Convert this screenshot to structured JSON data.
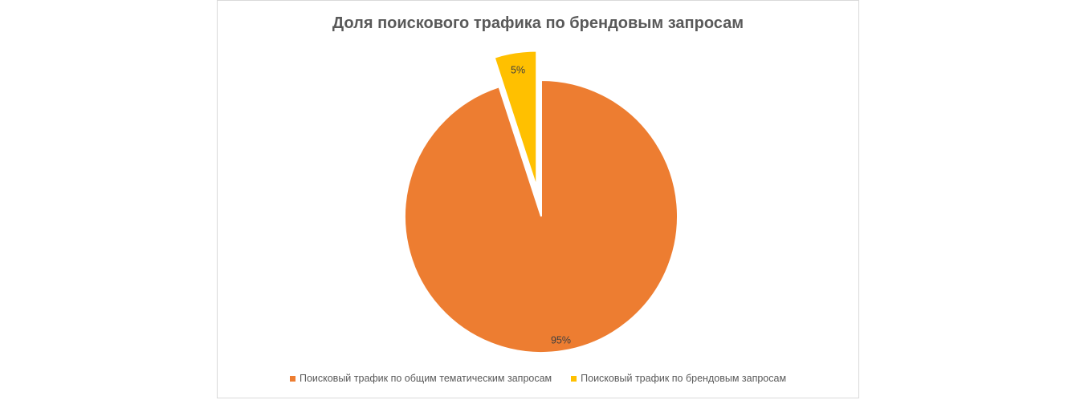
{
  "chart_data": {
    "type": "pie",
    "title": "Доля поискового трафика по брендовым запросам",
    "series": [
      {
        "slices": [
          {
            "name": "Поисковый трафик по общим тематическим запросам",
            "value": 95,
            "label": "95%",
            "color": "#ED7D31",
            "exploded": false
          },
          {
            "name": "Поисковый трафик по брендовым запросам",
            "value": 5,
            "label": "5%",
            "color": "#FFC000",
            "exploded": true
          }
        ]
      }
    ],
    "legend_position": "bottom",
    "start_angle_deg": 0,
    "direction": "clockwise"
  }
}
